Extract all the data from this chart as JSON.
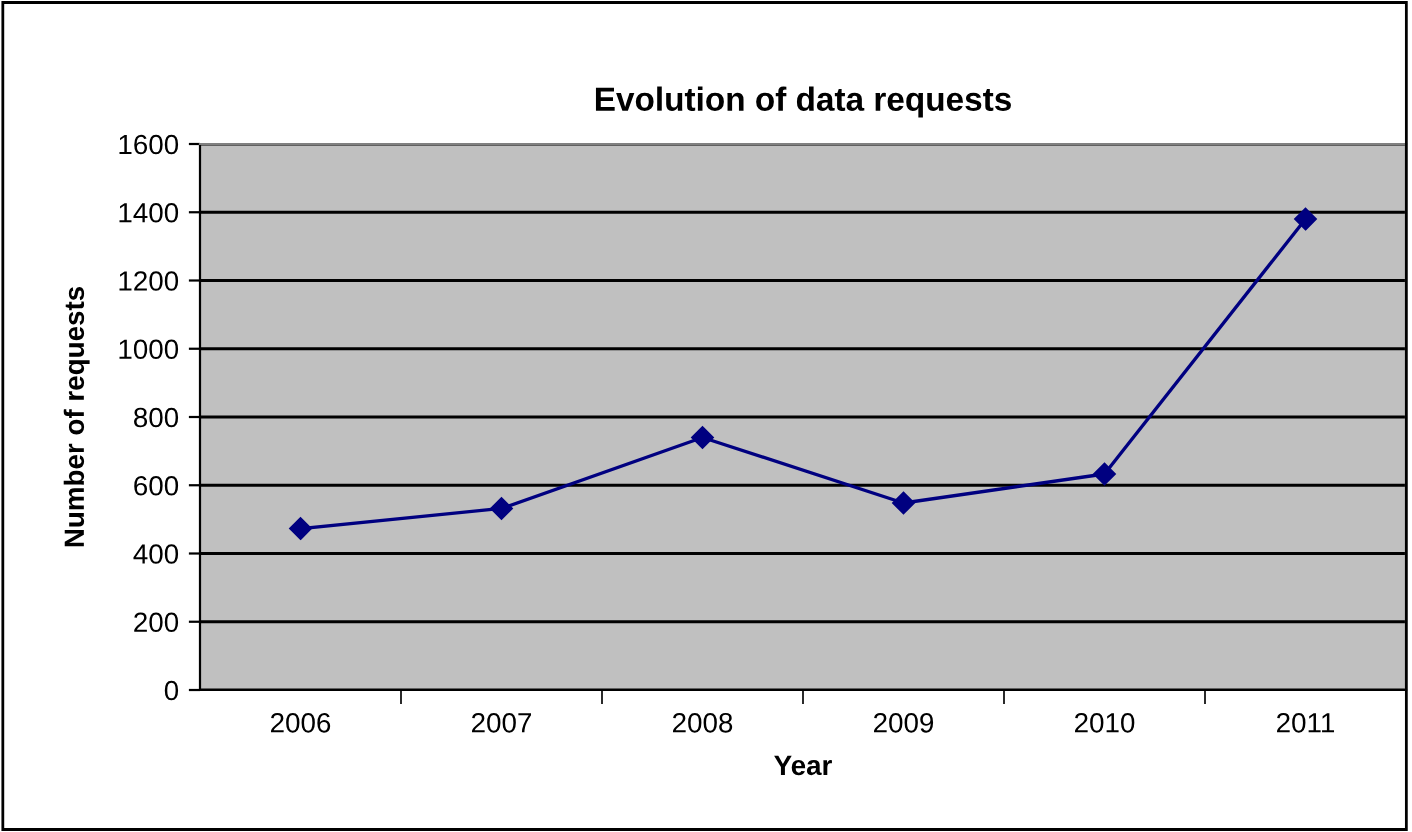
{
  "chart_data": {
    "type": "line",
    "title": "Evolution of data requests",
    "xlabel": "Year",
    "ylabel": "Number of requests",
    "categories": [
      "2006",
      "2007",
      "2008",
      "2009",
      "2010",
      "2011"
    ],
    "series": [
      {
        "color": "#000080",
        "values": [
          473,
          532,
          740,
          548,
          633,
          1380
        ]
      }
    ],
    "ylim": [
      0,
      1600
    ],
    "yticks": [
      0,
      200,
      400,
      600,
      800,
      1000,
      1200,
      1400,
      1600
    ],
    "grid": "y",
    "marker": "diamond",
    "line_style": "solid",
    "legend": false
  }
}
